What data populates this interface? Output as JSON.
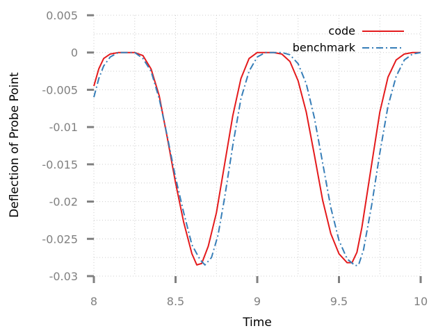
{
  "chart_data": {
    "type": "line",
    "title": "",
    "xlabel": "Time",
    "ylabel": "Deflection of Probe Point",
    "xlim": [
      8,
      10
    ],
    "ylim": [
      -0.03,
      0.005
    ],
    "xticks": [
      8,
      8.5,
      9,
      9.5,
      10
    ],
    "xtick_labels": [
      "8",
      "8.5",
      "9",
      "9.5",
      "10"
    ],
    "yticks": [
      -0.03,
      -0.025,
      -0.02,
      -0.015,
      -0.01,
      -0.005,
      0,
      0.005
    ],
    "ytick_labels": [
      "-0.03",
      "-0.025",
      "-0.02",
      "-0.015",
      "-0.01",
      "-0.005",
      "0",
      "0.005"
    ],
    "grid": true,
    "legend_position": "top-right",
    "series": [
      {
        "name": "code",
        "style": "solid",
        "color": "#e41a1c",
        "x": [
          8.0,
          8.03,
          8.06,
          8.1,
          8.15,
          8.2,
          8.25,
          8.3,
          8.35,
          8.4,
          8.45,
          8.5,
          8.55,
          8.6,
          8.63,
          8.66,
          8.7,
          8.75,
          8.8,
          8.85,
          8.9,
          8.95,
          9.0,
          9.05,
          9.1,
          9.15,
          9.2,
          9.25,
          9.3,
          9.35,
          9.4,
          9.45,
          9.5,
          9.55,
          9.58,
          9.61,
          9.64,
          9.7,
          9.75,
          9.8,
          9.85,
          9.9,
          9.95,
          10.0
        ],
        "y": [
          -0.0045,
          -0.0022,
          -0.0008,
          -0.0002,
          0.0,
          0.0,
          0.0,
          -0.0004,
          -0.0022,
          -0.0058,
          -0.0115,
          -0.0175,
          -0.0228,
          -0.027,
          -0.0285,
          -0.0283,
          -0.026,
          -0.0215,
          -0.015,
          -0.0085,
          -0.0035,
          -0.0008,
          0.0,
          0.0,
          0.0,
          -0.0002,
          -0.0012,
          -0.0038,
          -0.008,
          -0.0138,
          -0.0198,
          -0.0243,
          -0.027,
          -0.0282,
          -0.0282,
          -0.0268,
          -0.0235,
          -0.015,
          -0.008,
          -0.0033,
          -0.001,
          -0.0002,
          0.0,
          0.0
        ]
      },
      {
        "name": "benchmark",
        "style": "dashdot",
        "color": "#377eb8",
        "x": [
          8.0,
          8.03,
          8.06,
          8.1,
          8.15,
          8.2,
          8.25,
          8.3,
          8.35,
          8.4,
          8.45,
          8.5,
          8.55,
          8.6,
          8.65,
          8.68,
          8.72,
          8.76,
          8.8,
          8.85,
          8.9,
          8.95,
          9.0,
          9.05,
          9.1,
          9.15,
          9.2,
          9.25,
          9.3,
          9.35,
          9.4,
          9.45,
          9.5,
          9.55,
          9.6,
          9.62,
          9.65,
          9.7,
          9.75,
          9.8,
          9.85,
          9.9,
          9.95,
          10.0
        ],
        "y": [
          -0.006,
          -0.0035,
          -0.0018,
          -0.0006,
          0.0,
          0.0,
          0.0,
          -0.0008,
          -0.0025,
          -0.0062,
          -0.0113,
          -0.0168,
          -0.0215,
          -0.0258,
          -0.0278,
          -0.0285,
          -0.0275,
          -0.0245,
          -0.0195,
          -0.0125,
          -0.0062,
          -0.0025,
          -0.0006,
          0.0,
          0.0,
          0.0,
          -0.0003,
          -0.0015,
          -0.0042,
          -0.0088,
          -0.0148,
          -0.0208,
          -0.0252,
          -0.0277,
          -0.0286,
          -0.0285,
          -0.0265,
          -0.0205,
          -0.0135,
          -0.0072,
          -0.0032,
          -0.001,
          -0.0002,
          0.0
        ]
      }
    ]
  }
}
